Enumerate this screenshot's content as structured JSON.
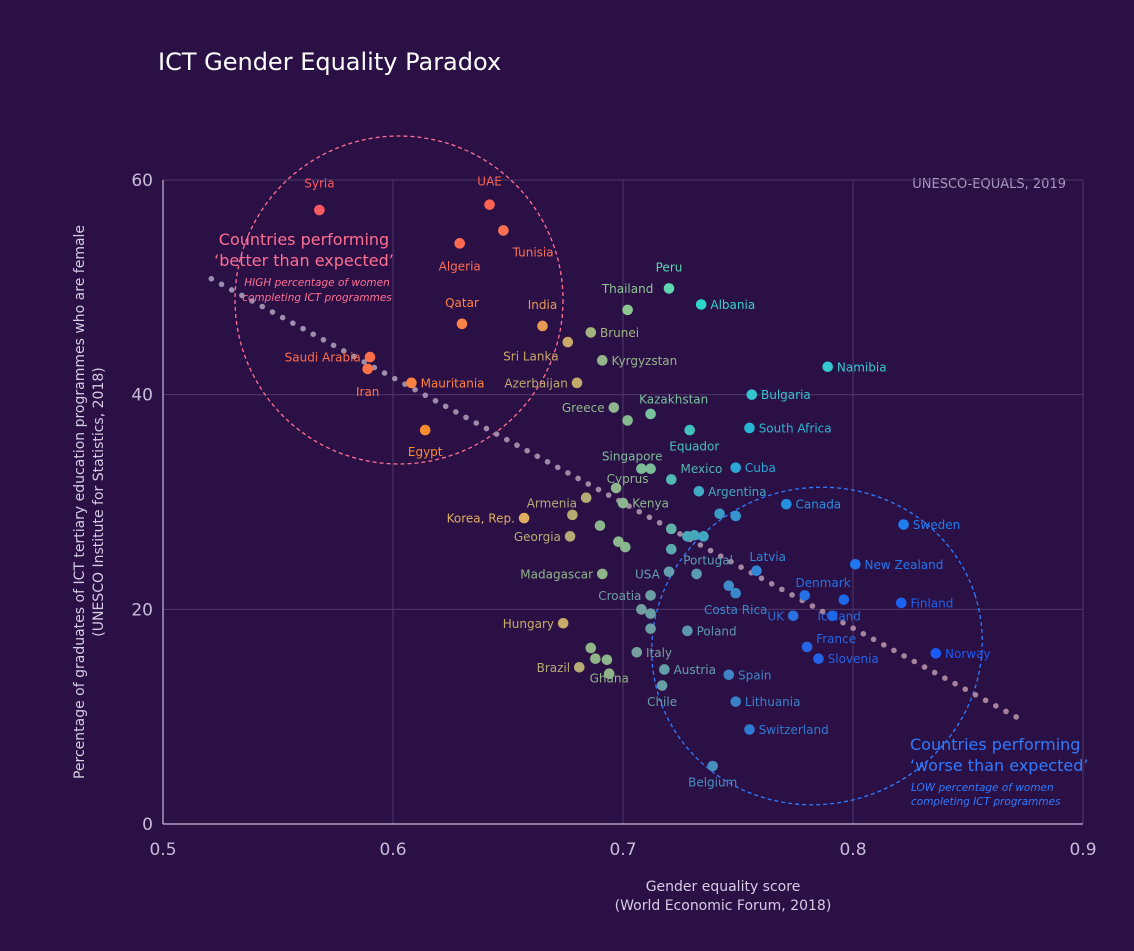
{
  "chart_data": {
    "type": "scatter",
    "title": "ICT Gender Equality Paradox",
    "source": "UNESCO-EQUALS, 2019",
    "xlabel": [
      "Gender equality score",
      "(World Economic Forum, 2018)"
    ],
    "ylabel": [
      "Percentage of graduates of ICT tertiary education programmes who are female",
      "(UNESCO Institute for Statistics, 2018)"
    ],
    "xlim": [
      0.5,
      0.9
    ],
    "ylim": [
      0,
      60
    ],
    "xticks": [
      "0.5",
      "0.6",
      "0.7",
      "0.8",
      "0.9"
    ],
    "yticks": [
      "0",
      "20",
      "40",
      "60"
    ],
    "grid": true,
    "trendline": [
      [
        0.521,
        50.8
      ],
      [
        0.875,
        9.5
      ]
    ],
    "annotations": [
      {
        "id": "better",
        "lines": [
          "Countries performing",
          "‘better than expected’"
        ],
        "sublines": [
          "HIGH percentage of women",
          "completing ICT programmes"
        ],
        "color": "#ff6f91"
      },
      {
        "id": "worse",
        "lines": [
          "Countries performing",
          "‘worse than expected’"
        ],
        "sublines": [
          "LOW percentage of women",
          "completing ICT programmes"
        ],
        "color": "#2f7bff"
      }
    ],
    "points": [
      {
        "label": "Syria",
        "x": 0.568,
        "y": 57.2,
        "color": "#ff5a5f",
        "lx": 0.568,
        "ly": 59.7,
        "anchor": "middle"
      },
      {
        "label": "UAE",
        "x": 0.642,
        "y": 57.7,
        "color": "#ff6253",
        "lx": 0.642,
        "ly": 59.9,
        "anchor": "middle"
      },
      {
        "label": "Tunisia",
        "x": 0.648,
        "y": 55.3,
        "color": "#ff6f52",
        "lx": 0.652,
        "ly": 53.3,
        "anchor": "start"
      },
      {
        "label": "Algeria",
        "x": 0.629,
        "y": 54.1,
        "color": "#ff6a50",
        "lx": 0.629,
        "ly": 52.0,
        "anchor": "middle"
      },
      {
        "label": "Qatar",
        "x": 0.63,
        "y": 46.6,
        "color": "#ff8246",
        "lx": 0.63,
        "ly": 48.6,
        "anchor": "middle"
      },
      {
        "label": "India",
        "x": 0.665,
        "y": 46.4,
        "color": "#e69a55",
        "lx": 0.665,
        "ly": 48.4,
        "anchor": "middle"
      },
      {
        "label": "Saudi Arabia",
        "x": 0.59,
        "y": 43.5,
        "color": "#ff6e4a",
        "lx": 0.586,
        "ly": 43.5,
        "anchor": "end"
      },
      {
        "label": "Iran",
        "x": 0.589,
        "y": 42.4,
        "color": "#ff7248",
        "lx": 0.589,
        "ly": 40.3,
        "anchor": "middle"
      },
      {
        "label": "Mauritania",
        "x": 0.608,
        "y": 41.1,
        "color": "#ff8140",
        "lx": 0.612,
        "ly": 41.1,
        "anchor": "start"
      },
      {
        "label": "Egypt",
        "x": 0.614,
        "y": 36.7,
        "color": "#ff8c2e",
        "lx": 0.614,
        "ly": 34.7,
        "anchor": "middle"
      },
      {
        "label": "Sri Lanka",
        "x": 0.676,
        "y": 44.9,
        "color": "#c9a868",
        "lx": 0.672,
        "ly": 43.6,
        "anchor": "end"
      },
      {
        "label": "Brunei",
        "x": 0.686,
        "y": 45.8,
        "color": "#a2b480",
        "lx": 0.69,
        "ly": 45.8,
        "anchor": "start"
      },
      {
        "label": "Kyrgyzstan",
        "x": 0.691,
        "y": 43.2,
        "color": "#94b58a",
        "lx": 0.695,
        "ly": 43.2,
        "anchor": "start"
      },
      {
        "label": "Azerbaijan",
        "x": 0.68,
        "y": 41.1,
        "color": "#c0a96a",
        "lx": 0.676,
        "ly": 41.1,
        "anchor": "end"
      },
      {
        "label": "Thailand",
        "x": 0.702,
        "y": 47.9,
        "color": "#8cc591",
        "lx": 0.702,
        "ly": 49.9,
        "anchor": "middle"
      },
      {
        "label": "Peru",
        "x": 0.72,
        "y": 49.9,
        "color": "#5fd6b2",
        "lx": 0.72,
        "ly": 51.9,
        "anchor": "middle"
      },
      {
        "label": "Albania",
        "x": 0.734,
        "y": 48.4,
        "color": "#2dd7c8",
        "lx": 0.738,
        "ly": 48.4,
        "anchor": "start"
      },
      {
        "label": "Namibia",
        "x": 0.789,
        "y": 42.6,
        "color": "#34c9d0",
        "lx": 0.793,
        "ly": 42.6,
        "anchor": "start"
      },
      {
        "label": "Bulgaria",
        "x": 0.756,
        "y": 40.0,
        "color": "#35c5cc",
        "lx": 0.76,
        "ly": 40.0,
        "anchor": "start"
      },
      {
        "label": "South Africa",
        "x": 0.755,
        "y": 36.9,
        "color": "#29b6d4",
        "lx": 0.759,
        "ly": 36.9,
        "anchor": "start"
      },
      {
        "label": "Greece",
        "x": 0.696,
        "y": 38.8,
        "color": "#8fb68c",
        "lx": 0.692,
        "ly": 38.8,
        "anchor": "end"
      },
      {
        "label": "Kazakhstan",
        "x": 0.712,
        "y": 38.2,
        "color": "#78c19c",
        "lx": 0.707,
        "ly": 39.6,
        "anchor": "start"
      },
      {
        "label": "",
        "x": 0.702,
        "y": 37.6,
        "color": "#86b98f"
      },
      {
        "label": "Equador",
        "x": 0.729,
        "y": 36.7,
        "color": "#43c1bd",
        "lx": 0.731,
        "ly": 35.2,
        "anchor": "middle"
      },
      {
        "label": "Singapore",
        "x": 0.708,
        "y": 33.1,
        "color": "#7dbb98",
        "lx": 0.704,
        "ly": 34.3,
        "anchor": "middle"
      },
      {
        "label": "",
        "x": 0.712,
        "y": 33.1,
        "color": "#7dbb98"
      },
      {
        "label": "Mexico",
        "x": 0.721,
        "y": 32.1,
        "color": "#52b8b4",
        "lx": 0.725,
        "ly": 33.1,
        "anchor": "start"
      },
      {
        "label": "Cuba",
        "x": 0.749,
        "y": 33.2,
        "color": "#2aa8d6",
        "lx": 0.753,
        "ly": 33.2,
        "anchor": "start"
      },
      {
        "label": "Cyprus",
        "x": 0.697,
        "y": 31.3,
        "color": "#8fb68c",
        "lx": 0.702,
        "ly": 32.2,
        "anchor": "middle"
      },
      {
        "label": "Argentina",
        "x": 0.733,
        "y": 31.0,
        "color": "#3faac2",
        "lx": 0.737,
        "ly": 31.0,
        "anchor": "start"
      },
      {
        "label": "Armenia",
        "x": 0.684,
        "y": 30.4,
        "color": "#b3ad75",
        "lx": 0.68,
        "ly": 29.9,
        "anchor": "end"
      },
      {
        "label": "Kenya",
        "x": 0.7,
        "y": 29.9,
        "color": "#8bb68e",
        "lx": 0.704,
        "ly": 29.9,
        "anchor": "start"
      },
      {
        "label": "Canada",
        "x": 0.771,
        "y": 29.8,
        "color": "#2590e0",
        "lx": 0.775,
        "ly": 29.8,
        "anchor": "start"
      },
      {
        "label": "Korea, Rep.",
        "x": 0.657,
        "y": 28.5,
        "color": "#e0ad5e",
        "lx": 0.653,
        "ly": 28.5,
        "anchor": "end"
      },
      {
        "label": "",
        "x": 0.678,
        "y": 28.8,
        "color": "#b6ac72"
      },
      {
        "label": "",
        "x": 0.742,
        "y": 28.9,
        "color": "#3a9bc6"
      },
      {
        "label": "",
        "x": 0.749,
        "y": 28.7,
        "color": "#3495cc"
      },
      {
        "label": "Sweden",
        "x": 0.822,
        "y": 27.9,
        "color": "#1e7ff0",
        "lx": 0.826,
        "ly": 27.9,
        "anchor": "start"
      },
      {
        "label": "",
        "x": 0.69,
        "y": 27.8,
        "color": "#8db58c"
      },
      {
        "label": "",
        "x": 0.721,
        "y": 27.5,
        "color": "#5fb0a8"
      },
      {
        "label": "Georgia",
        "x": 0.677,
        "y": 26.8,
        "color": "#b5ac73",
        "lx": 0.673,
        "ly": 26.8,
        "anchor": "end"
      },
      {
        "label": "",
        "x": 0.728,
        "y": 26.8,
        "color": "#48a9b8"
      },
      {
        "label": "",
        "x": 0.731,
        "y": 26.9,
        "color": "#46a8ba"
      },
      {
        "label": "",
        "x": 0.735,
        "y": 26.8,
        "color": "#42a4bf"
      },
      {
        "label": "",
        "x": 0.698,
        "y": 26.3,
        "color": "#8cb68d"
      },
      {
        "label": "",
        "x": 0.701,
        "y": 25.8,
        "color": "#88b790"
      },
      {
        "label": "",
        "x": 0.721,
        "y": 25.6,
        "color": "#5aa9ac"
      },
      {
        "label": "Portugal",
        "x": 0.732,
        "y": 23.3,
        "color": "#5a9cb0",
        "lx": 0.737,
        "ly": 24.6,
        "anchor": "middle"
      },
      {
        "label": "Latvia",
        "x": 0.758,
        "y": 23.6,
        "color": "#3486d6",
        "lx": 0.755,
        "ly": 24.9,
        "anchor": "start"
      },
      {
        "label": "New Zealand",
        "x": 0.801,
        "y": 24.2,
        "color": "#1f76ee",
        "lx": 0.805,
        "ly": 24.2,
        "anchor": "start"
      },
      {
        "label": "USA",
        "x": 0.72,
        "y": 23.5,
        "color": "#639fad",
        "lx": 0.716,
        "ly": 23.3,
        "anchor": "end"
      },
      {
        "label": "Madagascar",
        "x": 0.691,
        "y": 23.3,
        "color": "#8fb488",
        "lx": 0.687,
        "ly": 23.3,
        "anchor": "end"
      },
      {
        "label": "Denmark",
        "x": 0.779,
        "y": 21.3,
        "color": "#2670e6",
        "lx": 0.775,
        "ly": 22.5,
        "anchor": "start"
      },
      {
        "label": "",
        "x": 0.746,
        "y": 22.2,
        "color": "#3f8bc6"
      },
      {
        "label": "Costa Rica",
        "x": 0.749,
        "y": 21.5,
        "color": "#3a88ca",
        "lx": 0.749,
        "ly": 20.0,
        "anchor": "middle"
      },
      {
        "label": "Croatia",
        "x": 0.712,
        "y": 21.3,
        "color": "#6c9fa5",
        "lx": 0.708,
        "ly": 21.3,
        "anchor": "end"
      },
      {
        "label": "",
        "x": 0.796,
        "y": 20.9,
        "color": "#1e68ec"
      },
      {
        "label": "Finland",
        "x": 0.821,
        "y": 20.6,
        "color": "#1c62f0",
        "lx": 0.825,
        "ly": 20.6,
        "anchor": "start"
      },
      {
        "label": "",
        "x": 0.708,
        "y": 20.0,
        "color": "#719fa2"
      },
      {
        "label": "",
        "x": 0.712,
        "y": 19.6,
        "color": "#6c9fa5"
      },
      {
        "label": "UK",
        "x": 0.774,
        "y": 19.4,
        "color": "#2a70de",
        "lx": 0.77,
        "ly": 19.4,
        "anchor": "end"
      },
      {
        "label": "Iceland",
        "x": 0.791,
        "y": 19.4,
        "color": "#2068e8",
        "lx": 0.794,
        "ly": 19.4,
        "anchor": "middle"
      },
      {
        "label": "Hungary",
        "x": 0.674,
        "y": 18.7,
        "color": "#c8ab66",
        "lx": 0.67,
        "ly": 18.7,
        "anchor": "end"
      },
      {
        "label": "",
        "x": 0.712,
        "y": 18.2,
        "color": "#6c9fa5"
      },
      {
        "label": "Poland",
        "x": 0.728,
        "y": 18.0,
        "color": "#5d97ad",
        "lx": 0.732,
        "ly": 18.0,
        "anchor": "start"
      },
      {
        "label": "France",
        "x": 0.78,
        "y": 16.5,
        "color": "#2666e4",
        "lx": 0.784,
        "ly": 17.3,
        "anchor": "start"
      },
      {
        "label": "Norway",
        "x": 0.836,
        "y": 15.9,
        "color": "#1a5bf2",
        "lx": 0.84,
        "ly": 15.9,
        "anchor": "start"
      },
      {
        "label": "Italy",
        "x": 0.706,
        "y": 16.0,
        "color": "#74a09f",
        "lx": 0.71,
        "ly": 16.0,
        "anchor": "start"
      },
      {
        "label": "",
        "x": 0.686,
        "y": 16.4,
        "color": "#8fb488"
      },
      {
        "label": "Slovenia",
        "x": 0.785,
        "y": 15.4,
        "color": "#2462e6",
        "lx": 0.789,
        "ly": 15.4,
        "anchor": "start"
      },
      {
        "label": "",
        "x": 0.688,
        "y": 15.4,
        "color": "#8fb488"
      },
      {
        "label": "",
        "x": 0.693,
        "y": 15.3,
        "color": "#8ab58d"
      },
      {
        "label": "Brazil",
        "x": 0.681,
        "y": 14.6,
        "color": "#b4ac73",
        "lx": 0.677,
        "ly": 14.6,
        "anchor": "end"
      },
      {
        "label": "Ghana",
        "x": 0.694,
        "y": 14.0,
        "color": "#8fb488",
        "lx": 0.694,
        "ly": 13.6,
        "anchor": "middle"
      },
      {
        "label": "Austria",
        "x": 0.718,
        "y": 14.4,
        "color": "#64a0a8",
        "lx": 0.722,
        "ly": 14.4,
        "anchor": "start"
      },
      {
        "label": "Spain",
        "x": 0.746,
        "y": 13.9,
        "color": "#3f84c5",
        "lx": 0.75,
        "ly": 13.9,
        "anchor": "start"
      },
      {
        "label": "Chile",
        "x": 0.717,
        "y": 12.9,
        "color": "#679fa5",
        "lx": 0.717,
        "ly": 11.4,
        "anchor": "middle"
      },
      {
        "label": "Lithuania",
        "x": 0.749,
        "y": 11.4,
        "color": "#3881c9",
        "lx": 0.753,
        "ly": 11.4,
        "anchor": "start"
      },
      {
        "label": "Switzerland",
        "x": 0.755,
        "y": 8.8,
        "color": "#2f7ad2",
        "lx": 0.759,
        "ly": 8.8,
        "anchor": "start"
      },
      {
        "label": "Belgium",
        "x": 0.739,
        "y": 5.4,
        "color": "#468fbe",
        "lx": 0.739,
        "ly": 3.9,
        "anchor": "middle"
      }
    ]
  }
}
